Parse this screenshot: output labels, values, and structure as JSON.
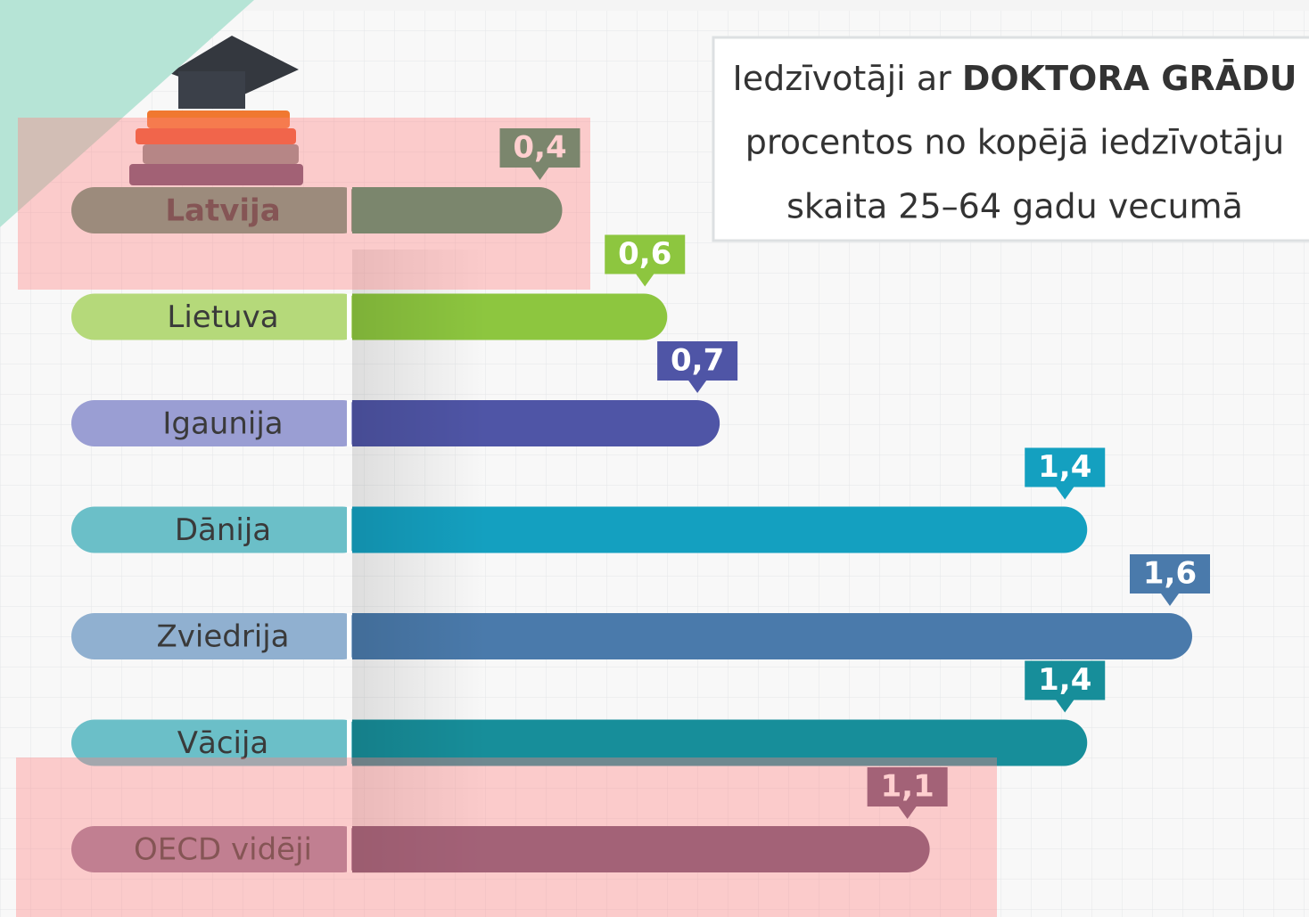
{
  "chart_data": {
    "type": "bar",
    "title": "Iedzīvotāji ar",
    "title_emphasis": "DOKTORA GRĀDU",
    "subtitle": [
      "procentos no kopējā iedzīvotāju",
      "skaita 25–64 gadu vecumā"
    ],
    "categories": [
      "Latvija",
      "Lietuva",
      "Igaunija",
      "Dānija",
      "Zviedrija",
      "Vācija",
      "OECD vidēji"
    ],
    "values": [
      0.4,
      0.6,
      0.7,
      1.4,
      1.6,
      1.4,
      1.1
    ],
    "value_labels": [
      "0,4",
      "0,6",
      "0,7",
      "1,4",
      "1,6",
      "1,4",
      "1,1"
    ],
    "colors": [
      "#2b8961",
      "#8dc63f",
      "#4f55a6",
      "#14a0c0",
      "#4a7aab",
      "#178e9a",
      "#6b4f72"
    ],
    "label_colors": [
      "#60927a",
      "#b5d97a",
      "#9a9ed3",
      "#6bbfc8",
      "#90b0d0",
      "#6bbfc8",
      "#9c7f9c"
    ]
  }
}
